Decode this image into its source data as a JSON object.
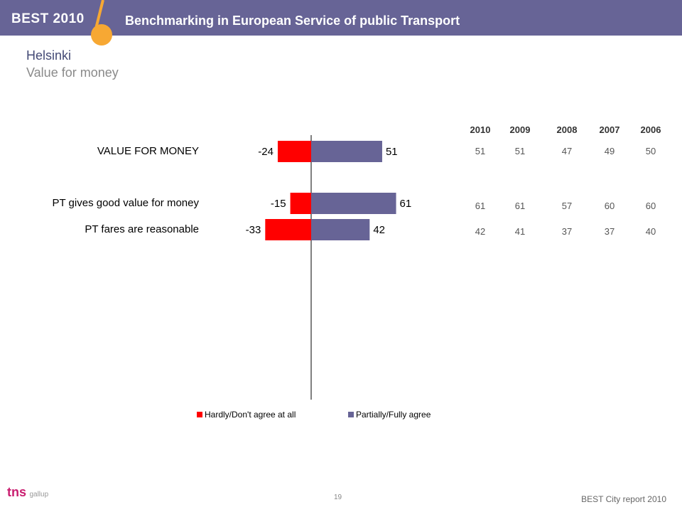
{
  "header": {
    "brand": "BEST 2010",
    "title": "Benchmarking in European Service of public Transport"
  },
  "page": {
    "city": "Helsinki",
    "subtitle": "Value for money"
  },
  "chart_data": {
    "type": "bar",
    "orientation": "horizontal-diverging",
    "categories": [
      "VALUE FOR MONEY",
      "PT gives good value for money",
      "PT fares are reasonable"
    ],
    "series": [
      {
        "name": "Hardly/Don't agree at all",
        "values": [
          -24,
          -15,
          -33
        ],
        "color": "#ff0000"
      },
      {
        "name": "Partially/Fully agree",
        "values": [
          51,
          61,
          42
        ],
        "color": "#676496"
      }
    ],
    "legend": "bottom",
    "grid": false
  },
  "history": {
    "years": [
      "2010",
      "2009",
      "2008",
      "2007",
      "2006"
    ],
    "rows": [
      [
        "51",
        "51",
        "47",
        "49",
        "50"
      ],
      [
        "61",
        "61",
        "57",
        "60",
        "60"
      ],
      [
        "42",
        "41",
        "37",
        "37",
        "40"
      ]
    ]
  },
  "footer": {
    "page_number": "19",
    "report": "BEST City report 2010",
    "logo_text": "tns",
    "logo_sub": "gallup"
  }
}
